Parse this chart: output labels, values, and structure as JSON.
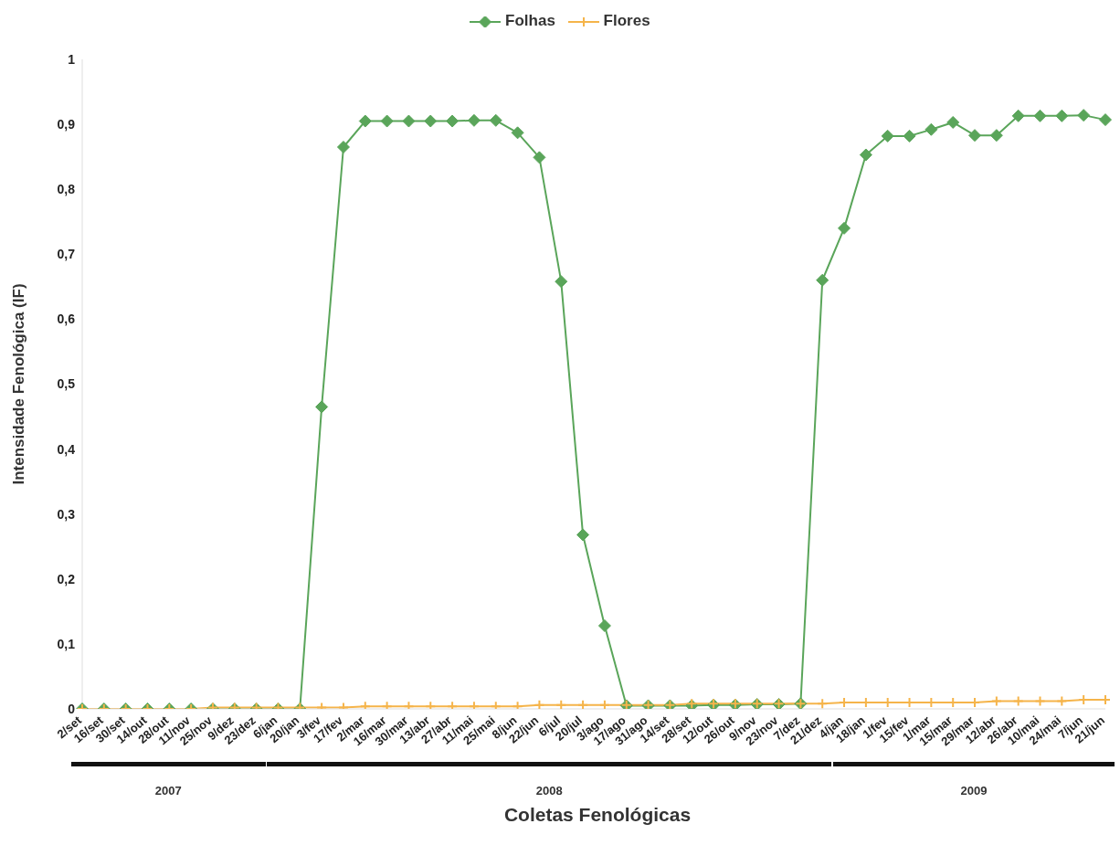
{
  "chart_data": {
    "type": "line",
    "xlabel": "Coletas Fenológicas",
    "ylabel": "Intensidade Fenológica (IF)",
    "categories": [
      "2/set",
      "16/set",
      "30/set",
      "14/out",
      "28/out",
      "11/nov",
      "25/nov",
      "9/dez",
      "23/dez",
      "6/jan",
      "20/jan",
      "3/fev",
      "17/fev",
      "2/mar",
      "16/mar",
      "30/mar",
      "13/abr",
      "27/abr",
      "11/mai",
      "25/mai",
      "8/jun",
      "22/jun",
      "6/jul",
      "20/jul",
      "3/ago",
      "17/ago",
      "31/ago",
      "14/set",
      "28/set",
      "12/out",
      "26/out",
      "9/nov",
      "23/nov",
      "7/dez",
      "21/dez",
      "4/jan",
      "18/jan",
      "1/fev",
      "15/fev",
      "1/mar",
      "15/mar",
      "29/mar",
      "12/abr",
      "26/abr",
      "10/mai",
      "24/mai",
      "7/jun",
      "21/jun"
    ],
    "series": [
      {
        "name": "Folhas",
        "color": "#5aa55a",
        "marker": "diamond",
        "values": [
          0,
          0,
          0,
          0,
          0,
          0,
          0,
          0,
          0,
          0,
          0,
          0.465,
          0.865,
          0.905,
          0.905,
          0.905,
          0.905,
          0.905,
          0.906,
          0.906,
          0.887,
          0.849,
          0.658,
          0.268,
          0.128,
          0.005,
          0.005,
          0.005,
          0.005,
          0.006,
          0.006,
          0.007,
          0.007,
          0.008,
          0.66,
          0.74,
          0.853,
          0.882,
          0.882,
          0.892,
          0.903,
          0.883,
          0.883,
          0.913,
          0.913,
          0.913,
          0.914,
          0.907
        ]
      },
      {
        "name": "Flores",
        "color": "#f5b44a",
        "marker": "cross",
        "values": [
          0,
          0,
          0,
          0,
          0,
          0,
          0.002,
          0.002,
          0.002,
          0.002,
          0.002,
          0.002,
          0.002,
          0.004,
          0.004,
          0.004,
          0.004,
          0.004,
          0.004,
          0.004,
          0.004,
          0.006,
          0.006,
          0.006,
          0.006,
          0.006,
          0.006,
          0.006,
          0.008,
          0.008,
          0.008,
          0.008,
          0.008,
          0.008,
          0.008,
          0.01,
          0.01,
          0.01,
          0.01,
          0.01,
          0.01,
          0.01,
          0.012,
          0.012,
          0.012,
          0.012,
          0.014,
          0.014
        ]
      }
    ],
    "ylim": [
      0,
      1
    ],
    "yticks": [
      0,
      {
        "value": 0.1,
        "label": "0,1"
      },
      {
        "value": 0.2,
        "label": "0,2"
      },
      {
        "value": 0.3,
        "label": "0,3"
      },
      {
        "value": 0.4,
        "label": "0,4"
      },
      {
        "value": 0.5,
        "label": "0,5"
      },
      {
        "value": 0.6,
        "label": "0,6"
      },
      {
        "value": 0.7,
        "label": "0,7"
      },
      {
        "value": 0.8,
        "label": "0,8"
      },
      {
        "value": 0.9,
        "label": "0,9"
      },
      1
    ],
    "grid": false,
    "legend": "top",
    "line_style": "solid",
    "annotations": [
      "2007",
      "2008",
      "2009"
    ]
  }
}
